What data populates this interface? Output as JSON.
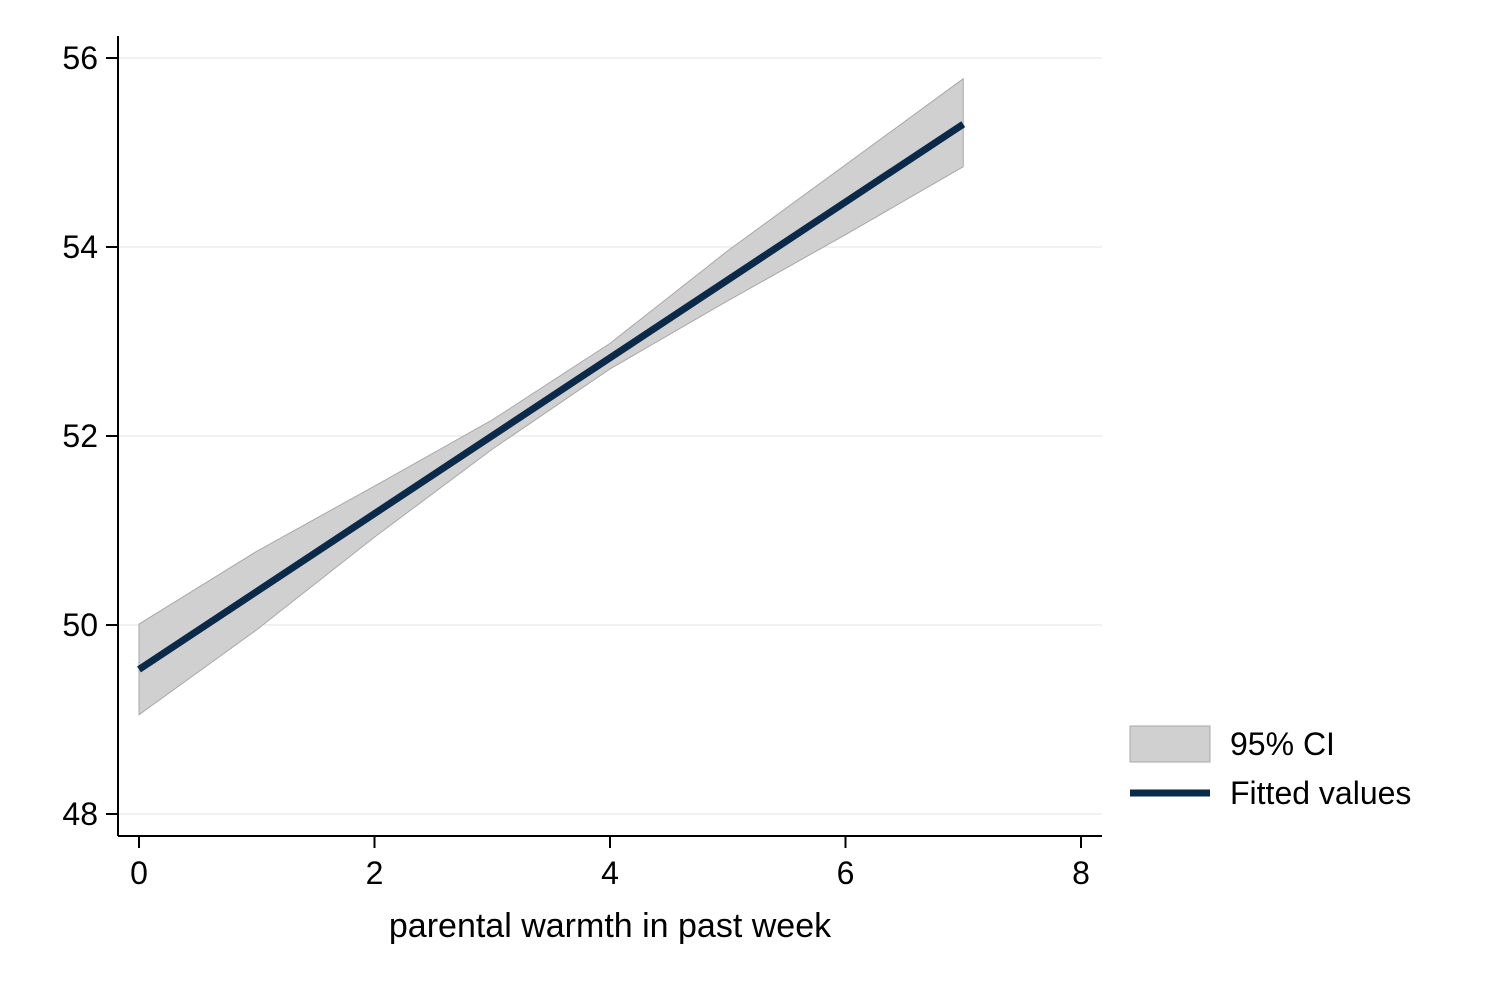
{
  "chart_data": {
    "type": "line",
    "xlabel": "parental warmth in past week",
    "ylabel": "",
    "xlim": [
      0,
      8
    ],
    "ylim": [
      48,
      56
    ],
    "x_ticks": [
      0,
      2,
      4,
      6,
      8
    ],
    "y_ticks": [
      48,
      50,
      52,
      54,
      56
    ],
    "grid": "horizontal",
    "legend_position": "right",
    "series": [
      {
        "name": "Fitted values",
        "kind": "line",
        "color": "#0b2a4a",
        "x": [
          0,
          7
        ],
        "y": [
          49.53,
          55.3
        ]
      },
      {
        "name": "95% CI",
        "kind": "band",
        "color": "#d0d0d0",
        "x": [
          0,
          1,
          2,
          3,
          4,
          5,
          6,
          7
        ],
        "lower": [
          49.05,
          49.95,
          50.93,
          51.86,
          52.71,
          53.43,
          54.13,
          54.85
        ],
        "upper": [
          50.01,
          50.78,
          51.47,
          52.17,
          52.98,
          53.96,
          54.87,
          55.78
        ]
      }
    ],
    "legend": [
      {
        "label": "95% CI",
        "kind": "band",
        "color": "#d0d0d0"
      },
      {
        "label": "Fitted values",
        "kind": "line",
        "color": "#0b2a4a"
      }
    ]
  }
}
